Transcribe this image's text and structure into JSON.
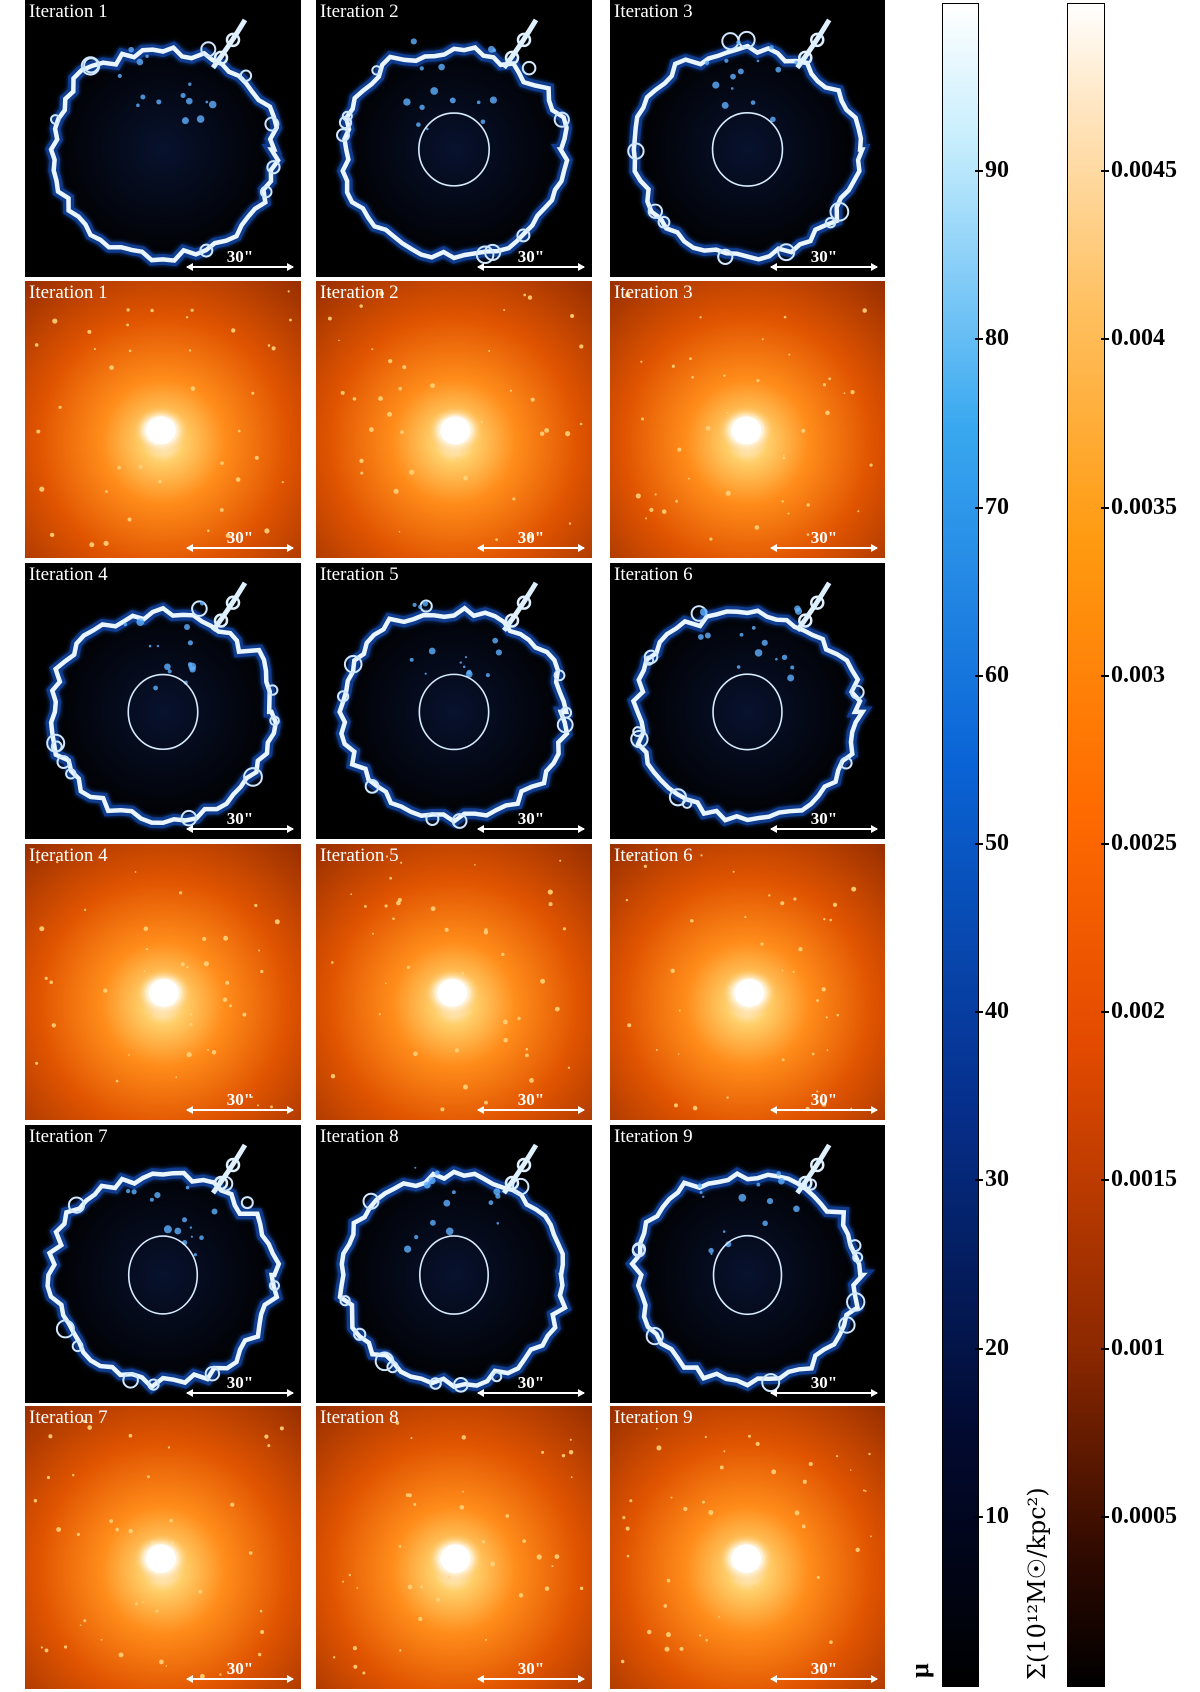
{
  "chart_data": {
    "type": "image_grid",
    "panels": [
      {
        "label": "Iteration 1",
        "kind": "magnification",
        "scale": "30\""
      },
      {
        "label": "Iteration 2",
        "kind": "magnification",
        "scale": "30\""
      },
      {
        "label": "Iteration 3",
        "kind": "magnification",
        "scale": "30\""
      },
      {
        "label": "Iteration 1",
        "kind": "mass_density",
        "scale": "30\""
      },
      {
        "label": "Iteration 2",
        "kind": "mass_density",
        "scale": "30\""
      },
      {
        "label": "Iteration 3",
        "kind": "mass_density",
        "scale": "30\""
      },
      {
        "label": "Iteration 4",
        "kind": "magnification",
        "scale": "30\""
      },
      {
        "label": "Iteration 5",
        "kind": "magnification",
        "scale": "30\""
      },
      {
        "label": "Iteration 6",
        "kind": "magnification",
        "scale": "30\""
      },
      {
        "label": "Iteration 4",
        "kind": "mass_density",
        "scale": "30\""
      },
      {
        "label": "Iteration 5",
        "kind": "mass_density",
        "scale": "30\""
      },
      {
        "label": "Iteration 6",
        "kind": "mass_density",
        "scale": "30\""
      },
      {
        "label": "Iteration 7",
        "kind": "magnification",
        "scale": "30\""
      },
      {
        "label": "Iteration 8",
        "kind": "magnification",
        "scale": "30\""
      },
      {
        "label": "Iteration 9",
        "kind": "magnification",
        "scale": "30\""
      },
      {
        "label": "Iteration 7",
        "kind": "mass_density",
        "scale": "30\""
      },
      {
        "label": "Iteration 8",
        "kind": "mass_density",
        "scale": "30\""
      },
      {
        "label": "Iteration 9",
        "kind": "mass_density",
        "scale": "30\""
      }
    ],
    "colorbars": [
      {
        "name": "mu",
        "label": "μ",
        "range": [
          0,
          100
        ],
        "ticks": [
          10,
          20,
          30,
          40,
          50,
          60,
          70,
          80,
          90
        ],
        "colors": [
          "#000000",
          "#021a6a",
          "#0a5cd8",
          "#3ea8f0",
          "#ffffff"
        ]
      },
      {
        "name": "sigma",
        "label": "Σ(10¹²M☉/kpc²)",
        "range": [
          0,
          0.005
        ],
        "ticks": [
          0.0005,
          0.001,
          0.0015,
          0.002,
          0.0025,
          0.003,
          0.0035,
          0.004,
          0.0045
        ],
        "tick_labels": [
          "0.0005",
          "0.001",
          "0.0015",
          "0.002",
          "0.0025",
          "0.003",
          "0.0035",
          "0.004",
          "0.0045"
        ],
        "colors": [
          "#000000",
          "#7a2000",
          "#ff5a00",
          "#ffb040",
          "#ffffff"
        ]
      }
    ]
  }
}
